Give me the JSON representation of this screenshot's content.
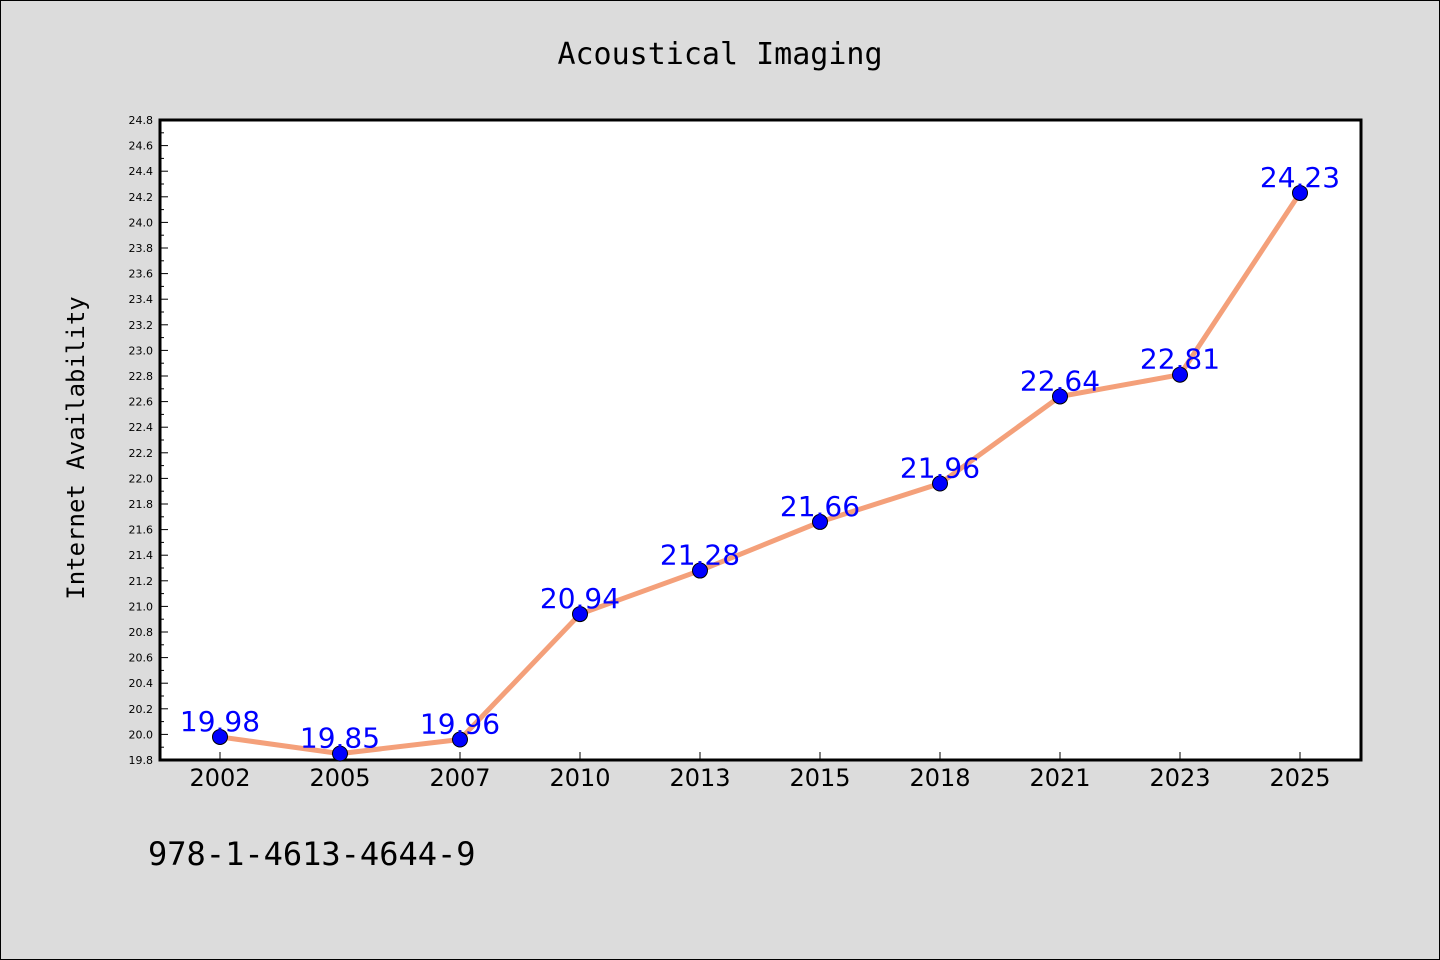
{
  "chart_data": {
    "type": "line",
    "title": "Acoustical Imaging",
    "xlabel": "",
    "ylabel": "Internet Availability",
    "categories": [
      "2002",
      "2005",
      "2007",
      "2010",
      "2013",
      "2015",
      "2018",
      "2021",
      "2023",
      "2025"
    ],
    "values": [
      19.98,
      19.85,
      19.96,
      20.94,
      21.28,
      21.66,
      21.96,
      22.64,
      22.81,
      24.23
    ],
    "data_labels": [
      "19.98",
      "19.85",
      "19.96",
      "20.94",
      "21.28",
      "21.66",
      "21.96",
      "22.64",
      "22.81",
      "24.23"
    ],
    "ylim": [
      19.8,
      24.8
    ],
    "yticks": [
      "19.8",
      "20.0",
      "20.2",
      "20.4",
      "20.6",
      "20.8",
      "21.0",
      "21.2",
      "21.4",
      "21.6",
      "21.8",
      "22.0",
      "22.2",
      "22.4",
      "22.6",
      "22.8",
      "23.0",
      "23.2",
      "23.4",
      "23.6",
      "23.8",
      "24.0",
      "24.2",
      "24.4",
      "24.6",
      "24.8"
    ],
    "grid": false,
    "legend": "none",
    "colors": {
      "line": "#f4a07a",
      "marker": "#0000ff",
      "label": "#0000ff"
    }
  },
  "footer": {
    "text": "978-1-4613-4644-9"
  }
}
